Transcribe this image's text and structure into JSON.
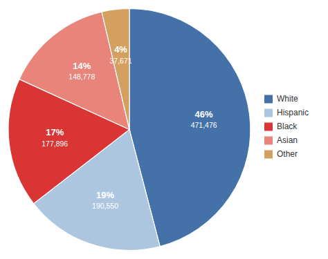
{
  "chart_data": {
    "type": "pie",
    "categories": [
      "White",
      "Hispanic",
      "Black",
      "Asian",
      "Other"
    ],
    "values": [
      471476,
      190550,
      177896,
      148778,
      37671
    ],
    "value_labels": [
      "471,476",
      "190,550",
      "177,896",
      "148,778",
      "37,671"
    ],
    "shares": [
      46,
      19,
      17,
      14,
      4
    ],
    "share_labels": [
      "46%",
      "19%",
      "17%",
      "14%",
      "4%"
    ],
    "colors": [
      "#4472a8",
      "#adc6e0",
      "#d93535",
      "#e8847a",
      "#d4a060"
    ],
    "data_labels": true,
    "legend": "right"
  }
}
